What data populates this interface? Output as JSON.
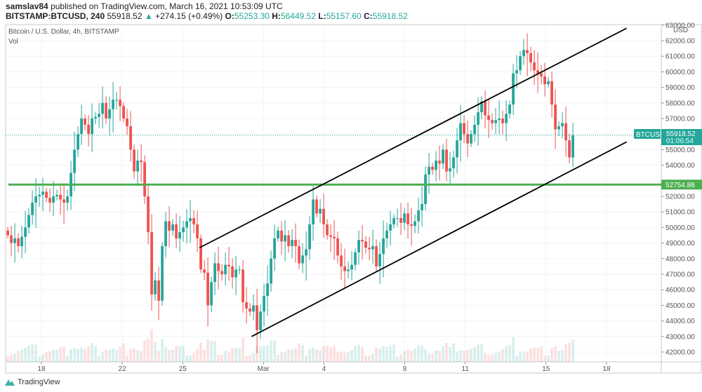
{
  "header": {
    "publisher": "samslav84",
    "published_text": "published on TradingView.com, March 16, 2021 10:53:09 UTC",
    "symbol": "BITSTAMP:BTCUSD, 240",
    "last": "55918.52",
    "change": "+274.15 (+0.49%)",
    "o_label": "O:",
    "o": "55253.30",
    "h_label": "H:",
    "h": "56449.52",
    "l_label": "L:",
    "l": "55157.60",
    "c_label": "C:",
    "c": "55918.52"
  },
  "legend": {
    "title": "Bitcoin / U.S. Dollar, 4h, BITSTAMP",
    "vol": "Vol"
  },
  "brand": "TradingView",
  "colors": {
    "up": "#26a69a",
    "down": "#ef5350",
    "level": "#4caf50",
    "channel": "#000000"
  },
  "chart_data": {
    "type": "candlestick",
    "interval": "4h",
    "first_time": "2021-02-16T08:00:00Z",
    "last_time": "2021-03-16T08:00:00Z",
    "closes": [
      49500,
      49000,
      49300,
      48800,
      49400,
      50000,
      50800,
      51600,
      52000,
      52100,
      52300,
      51900,
      51600,
      52000,
      52100,
      51800,
      51600,
      52000,
      53500,
      55000,
      56000,
      57000,
      56600,
      56000,
      57000,
      57100,
      57300,
      58000,
      57000,
      57600,
      58200,
      58200,
      57800,
      57000,
      56500,
      55000,
      53600,
      54300,
      54200,
      52000,
      49700,
      45700,
      46600,
      45300,
      48800,
      50400,
      49800,
      50200,
      49300,
      49700,
      50000,
      50400,
      50600,
      50200,
      49300,
      47300,
      47100,
      45000,
      46500,
      47700,
      47200,
      47000,
      47600,
      47500,
      46800,
      47300,
      47300,
      45200,
      44800,
      44600,
      45000,
      43400,
      44600,
      45600,
      46400,
      48000,
      49300,
      49800,
      49100,
      49500,
      48800,
      49200,
      48800,
      47700,
      48200,
      48600,
      50200,
      51800,
      50900,
      51200,
      50200,
      49500,
      49400,
      49300,
      48200,
      47500,
      47200,
      47300,
      47600,
      48400,
      49200,
      49100,
      48700,
      48600,
      48800,
      47500,
      48300,
      49300,
      49800,
      50200,
      50600,
      50600,
      50300,
      50900,
      50200,
      50100,
      50400,
      51100,
      51500,
      53400,
      53900,
      53700,
      54300,
      54100,
      55000,
      53600,
      53800,
      54500,
      55600,
      56700,
      56000,
      55400,
      56000,
      56600,
      57400,
      58100,
      57200,
      56900,
      56700,
      56900,
      57000,
      56700,
      57300,
      57900,
      59900,
      60100,
      61000,
      61400,
      61200,
      60600,
      60100,
      59900,
      59700,
      59200,
      59400,
      57900,
      56300,
      56500,
      56700,
      55600,
      54500,
      55918.52
    ],
    "ylim": [
      41500,
      63000
    ],
    "y_ticks": [
      63000,
      62000,
      61000,
      60000,
      59000,
      58000,
      57000,
      56000,
      55000,
      54000,
      53000,
      52000,
      51000,
      50000,
      49000,
      48000,
      47000,
      46000,
      45000,
      44000,
      43000,
      42000
    ],
    "y_unit": "USD",
    "x_ticks": [
      {
        "label": "18",
        "date": "2021-02-18"
      },
      {
        "label": "22",
        "date": "2021-02-22"
      },
      {
        "label": "25",
        "date": "2021-02-25"
      },
      {
        "label": "Mar",
        "date": "2021-03-01"
      },
      {
        "label": "4",
        "date": "2021-03-04"
      },
      {
        "label": "8",
        "date": "2021-03-08"
      },
      {
        "label": "11",
        "date": "2021-03-11"
      },
      {
        "label": "15",
        "date": "2021-03-15"
      },
      {
        "label": "18",
        "date": "2021-03-18"
      }
    ],
    "horizontal_level": {
      "price": 52754.88,
      "label": "52754.88"
    },
    "channel": {
      "upper": [
        [
          "2021-02-25T20:00:00Z",
          48700
        ],
        [
          "2021-03-19T00:00:00Z",
          62800
        ]
      ],
      "lower": [
        [
          "2021-02-28T10:00:00Z",
          43000
        ],
        [
          "2021-03-19T00:00:00Z",
          55500
        ]
      ]
    },
    "price_tag": {
      "symbol": "BTCUSD",
      "price": "55918.52",
      "countdown": "01:06:54"
    }
  }
}
